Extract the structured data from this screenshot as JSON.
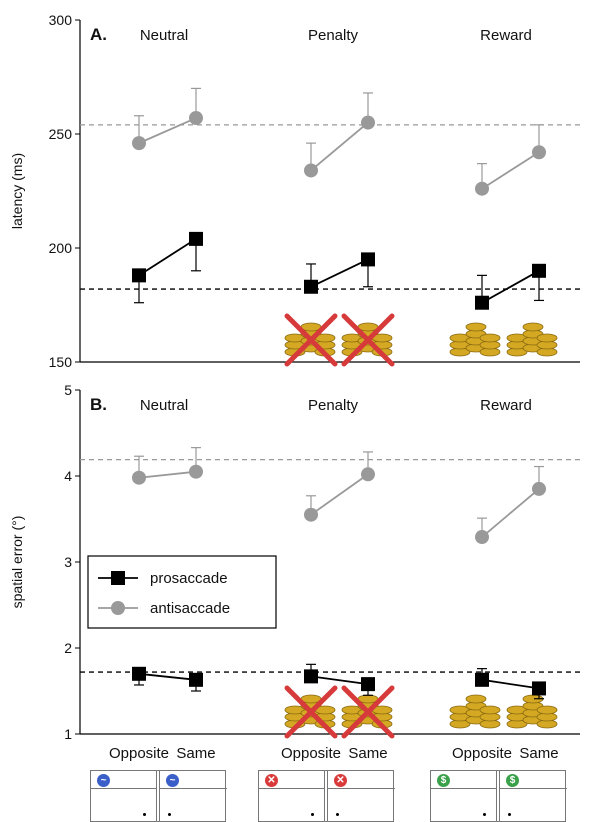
{
  "chart_data": [
    {
      "type": "line",
      "panel_label": "A.",
      "ylabel": "latency (ms)",
      "ylim": [
        150,
        300
      ],
      "yticks": [
        150,
        200,
        250,
        300
      ],
      "conditions": [
        "Neutral",
        "Penalty",
        "Reward"
      ],
      "series": [
        {
          "name": "prosaccade",
          "color": "#000000",
          "values": [
            [
              188,
              204
            ],
            [
              183,
              195
            ],
            [
              176,
              190
            ]
          ],
          "errors": [
            [
              12,
              14
            ],
            [
              10,
              12
            ],
            [
              12,
              13
            ]
          ]
        },
        {
          "name": "antisaccade",
          "color": "#999999",
          "values": [
            [
              246,
              257
            ],
            [
              234,
              255
            ],
            [
              226,
              242
            ]
          ],
          "errors": [
            [
              12,
              13
            ],
            [
              12,
              13
            ],
            [
              11,
              12
            ]
          ]
        }
      ],
      "reference_lines": [
        182,
        254
      ]
    },
    {
      "type": "line",
      "panel_label": "B.",
      "ylabel": "spatial error (°)",
      "ylim": [
        1,
        5
      ],
      "yticks": [
        1,
        2,
        3,
        4,
        5
      ],
      "conditions": [
        "Neutral",
        "Penalty",
        "Reward"
      ],
      "xtick_labels": [
        "Opposite",
        "Same"
      ],
      "series": [
        {
          "name": "prosaccade",
          "color": "#000000",
          "values": [
            [
              1.7,
              1.63
            ],
            [
              1.67,
              1.58
            ],
            [
              1.63,
              1.53
            ]
          ],
          "errors": [
            [
              0.13,
              0.13
            ],
            [
              0.14,
              0.13
            ],
            [
              0.13,
              0.12
            ]
          ]
        },
        {
          "name": "antisaccade",
          "color": "#999999",
          "values": [
            [
              3.98,
              4.05
            ],
            [
              3.55,
              4.02
            ],
            [
              3.29,
              3.85
            ]
          ],
          "errors": [
            [
              0.25,
              0.28
            ],
            [
              0.22,
              0.26
            ],
            [
              0.22,
              0.26
            ]
          ]
        }
      ],
      "reference_lines": [
        1.72,
        4.19
      ],
      "legend": {
        "placement": "bottom-left",
        "entries": [
          "prosaccade",
          "antisaccade"
        ]
      }
    }
  ],
  "stimulus_cues": [
    {
      "condition": "Neutral",
      "icon": "neutral-wave-icon",
      "glyph": "~",
      "color": "#3b5fc9"
    },
    {
      "condition": "Penalty",
      "icon": "penalty-x-icon",
      "glyph": "✕",
      "color": "#d93b3b"
    },
    {
      "condition": "Reward",
      "icon": "reward-dollar-icon",
      "glyph": "$",
      "color": "#3aa14a"
    }
  ],
  "colors": {
    "pro": "#000000",
    "anti": "#999999",
    "cross": "#d63a3a",
    "coin": "#d4a823"
  }
}
